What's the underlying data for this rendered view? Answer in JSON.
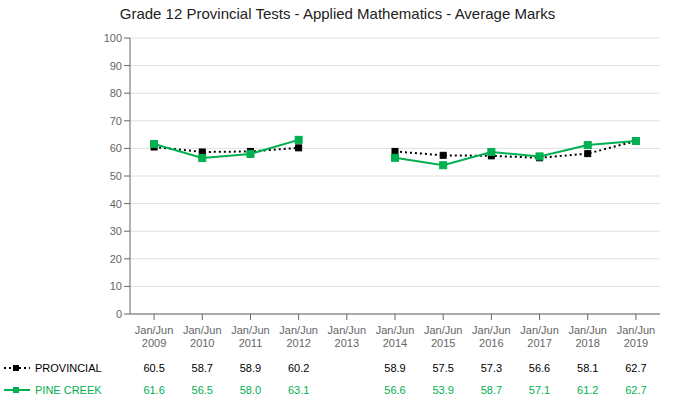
{
  "chart_data": {
    "type": "line",
    "title": "Grade 12 Provincial Tests - Applied Mathematics - Average Marks",
    "categories": [
      "Jan/Jun\n2009",
      "Jan/Jun\n2010",
      "Jan/Jun\n2011",
      "Jan/Jun\n2012",
      "Jan/Jun\n2013",
      "Jan/Jun\n2014",
      "Jan/Jun\n2015",
      "Jan/Jun\n2016",
      "Jan/Jun\n2017",
      "Jan/Jun\n2018",
      "Jan/Jun\n2019"
    ],
    "series": [
      {
        "name": "PROVINCIAL",
        "color": "#000000",
        "marker": "square",
        "line_style": "dotted",
        "values": [
          60.5,
          58.7,
          58.9,
          60.2,
          null,
          58.9,
          57.5,
          57.3,
          56.6,
          58.1,
          62.7
        ],
        "value_labels": [
          "60.5",
          "58.7",
          "58.9",
          "60.2",
          null,
          "58.9",
          "57.5",
          "57.3",
          "56.6",
          "58.1",
          "62.7"
        ]
      },
      {
        "name": "PINE CREEK",
        "color": "#00b050",
        "marker": "square",
        "line_style": "solid",
        "values": [
          61.6,
          56.5,
          58.0,
          63.1,
          null,
          56.6,
          53.9,
          58.7,
          57.1,
          61.2,
          62.7
        ],
        "value_labels": [
          "61.6",
          "56.5",
          "58.0",
          "63.1",
          null,
          "56.6",
          "53.9",
          "58.7",
          "57.1",
          "61.2",
          "62.7"
        ]
      }
    ],
    "ylim": [
      0,
      100
    ],
    "yticks": [
      0,
      10,
      20,
      30,
      40,
      50,
      60,
      70,
      80,
      90,
      100
    ],
    "grid": true,
    "legend": "bottom",
    "data_labels": true
  }
}
